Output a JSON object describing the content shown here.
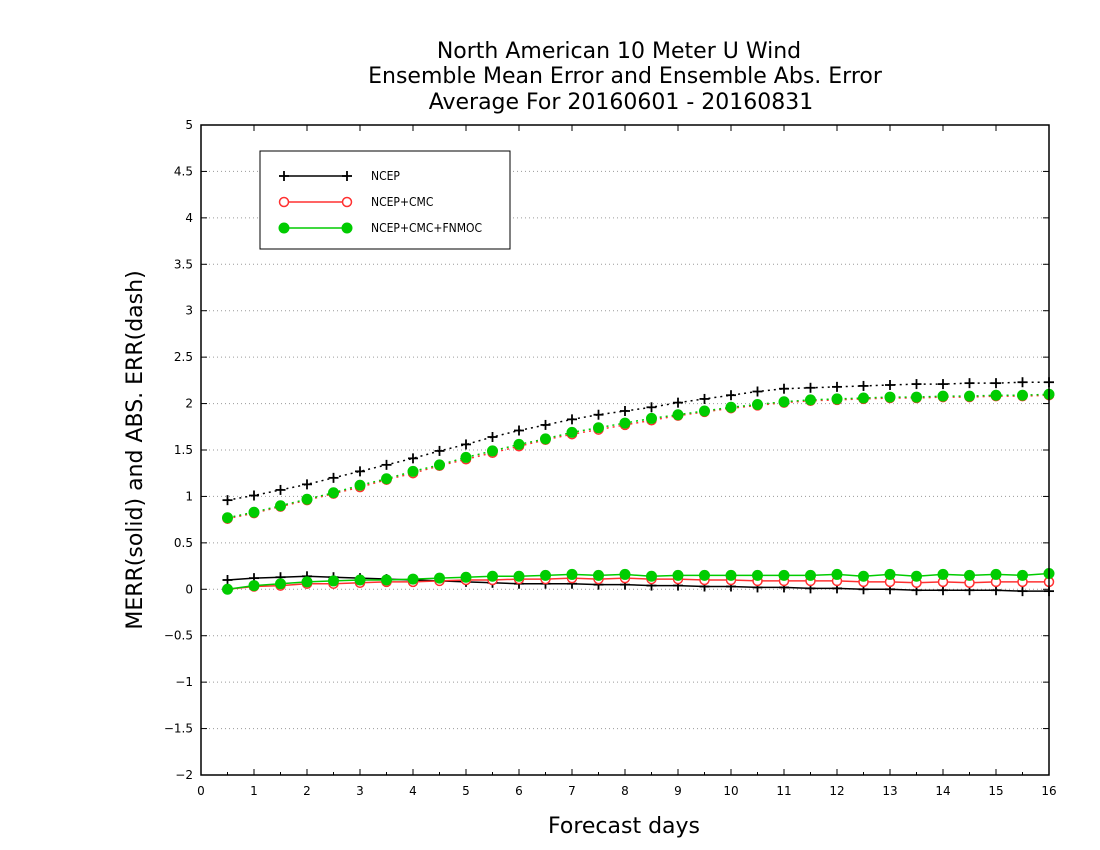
{
  "chart_data": {
    "type": "line",
    "title": [
      "North American 10 Meter U Wind",
      "Ensemble Mean Error and Ensemble Abs. Error",
      "Average For 20160601 - 20160831"
    ],
    "xlabel": "Forecast days",
    "ylabel": "MERR(solid) and ABS. ERR(dash)",
    "xlim": [
      0,
      16
    ],
    "ylim": [
      -2,
      5
    ],
    "xticks": [
      "0",
      "1",
      "2",
      "3",
      "4",
      "5",
      "6",
      "7",
      "8",
      "9",
      "10",
      "11",
      "12",
      "13",
      "14",
      "15",
      "16"
    ],
    "yticks": [
      "-2",
      "-1.5",
      "-1",
      "-0.5",
      "0",
      "0.5",
      "1",
      "1.5",
      "2",
      "2.5",
      "3",
      "3.5",
      "4",
      "4.5",
      "5"
    ],
    "grid": true,
    "legend_position": "top-left",
    "x": [
      0.5,
      1,
      1.5,
      2,
      2.5,
      3,
      3.5,
      4,
      4.5,
      5,
      5.5,
      6,
      6.5,
      7,
      7.5,
      8,
      8.5,
      9,
      9.5,
      10,
      10.5,
      11,
      11.5,
      12,
      12.5,
      13,
      13.5,
      14,
      14.5,
      15,
      15.5,
      16
    ],
    "series": [
      {
        "name": "NCEP",
        "color": "#000000",
        "marker": "plus",
        "merr": [
          0.1,
          0.12,
          0.13,
          0.14,
          0.13,
          0.12,
          0.11,
          0.1,
          0.09,
          0.08,
          0.07,
          0.06,
          0.06,
          0.06,
          0.05,
          0.05,
          0.04,
          0.04,
          0.03,
          0.03,
          0.02,
          0.02,
          0.01,
          0.01,
          0.0,
          0.0,
          -0.01,
          -0.01,
          -0.01,
          -0.01,
          -0.02,
          -0.02
        ],
        "abs_err": [
          0.96,
          1.01,
          1.07,
          1.13,
          1.2,
          1.27,
          1.34,
          1.41,
          1.49,
          1.56,
          1.64,
          1.71,
          1.77,
          1.83,
          1.88,
          1.92,
          1.96,
          2.01,
          2.05,
          2.09,
          2.13,
          2.16,
          2.17,
          2.18,
          2.19,
          2.2,
          2.21,
          2.21,
          2.22,
          2.22,
          2.23,
          2.23
        ]
      },
      {
        "name": "NCEP+CMC",
        "color": "#ff3030",
        "marker": "open-circle",
        "merr": [
          0.0,
          0.03,
          0.04,
          0.06,
          0.06,
          0.07,
          0.08,
          0.08,
          0.09,
          0.1,
          0.1,
          0.11,
          0.11,
          0.12,
          0.11,
          0.12,
          0.11,
          0.11,
          0.1,
          0.1,
          0.09,
          0.09,
          0.09,
          0.09,
          0.08,
          0.08,
          0.07,
          0.08,
          0.07,
          0.08,
          0.08,
          0.08
        ],
        "abs_err": [
          0.76,
          0.82,
          0.89,
          0.96,
          1.03,
          1.1,
          1.18,
          1.25,
          1.33,
          1.4,
          1.47,
          1.54,
          1.61,
          1.67,
          1.72,
          1.77,
          1.82,
          1.87,
          1.91,
          1.95,
          1.98,
          2.01,
          2.03,
          2.04,
          2.05,
          2.06,
          2.06,
          2.07,
          2.07,
          2.08,
          2.08,
          2.09
        ]
      },
      {
        "name": "NCEP+CMC+FNMOC",
        "color": "#00cc00",
        "marker": "filled-circle",
        "merr": [
          0.0,
          0.04,
          0.06,
          0.08,
          0.09,
          0.1,
          0.1,
          0.11,
          0.12,
          0.13,
          0.14,
          0.14,
          0.15,
          0.16,
          0.15,
          0.16,
          0.14,
          0.15,
          0.15,
          0.15,
          0.15,
          0.15,
          0.15,
          0.16,
          0.14,
          0.16,
          0.14,
          0.16,
          0.15,
          0.16,
          0.15,
          0.17
        ],
        "abs_err": [
          0.77,
          0.83,
          0.9,
          0.97,
          1.04,
          1.12,
          1.19,
          1.27,
          1.34,
          1.42,
          1.49,
          1.56,
          1.62,
          1.69,
          1.74,
          1.79,
          1.84,
          1.88,
          1.92,
          1.96,
          1.99,
          2.02,
          2.04,
          2.05,
          2.06,
          2.07,
          2.07,
          2.08,
          2.08,
          2.09,
          2.09,
          2.1
        ]
      }
    ]
  }
}
